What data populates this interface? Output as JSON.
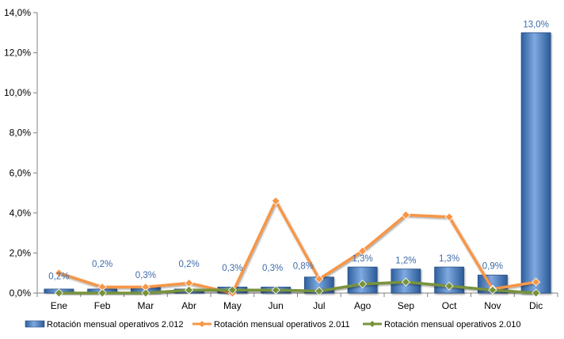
{
  "chart_data": {
    "type": "bar",
    "categories": [
      "Ene",
      "Feb",
      "Mar",
      "Abr",
      "May",
      "Jun",
      "Jul",
      "Ago",
      "Sep",
      "Oct",
      "Nov",
      "Dic"
    ],
    "ylim": [
      0,
      14
    ],
    "yticks": [
      0,
      2,
      4,
      6,
      8,
      10,
      12,
      14
    ],
    "ytick_labels": [
      "0,0%",
      "2,0%",
      "4,0%",
      "6,0%",
      "8,0%",
      "10,0%",
      "12,0%",
      "14,0%"
    ],
    "legend_position": "bottom",
    "grid": false,
    "series": [
      {
        "name": "Rotación mensual operativos 2.012",
        "type": "bar",
        "color": "#4F81BD",
        "values": [
          0.2,
          0.2,
          0.3,
          0.2,
          0.3,
          0.3,
          0.8,
          1.3,
          1.2,
          1.3,
          0.9,
          13.0
        ],
        "labels": [
          "0,2%",
          "0,2%",
          "0,3%",
          "0,2%",
          "0,3%",
          "0,3%",
          "0,8%",
          "1,3%",
          "1,2%",
          "1,3%",
          "0,9%",
          "13,0%"
        ]
      },
      {
        "name": "Rotación mensual operativos 2.011",
        "type": "line",
        "color": "#F79646",
        "values": [
          1.0,
          0.3,
          0.3,
          0.5,
          0.0,
          4.6,
          0.7,
          2.1,
          3.9,
          3.8,
          0.2,
          0.55
        ]
      },
      {
        "name": "Rotación mensual operativos 2.010",
        "type": "line",
        "color": "#77933C",
        "values": [
          0.0,
          0.0,
          0.0,
          0.15,
          0.15,
          0.15,
          0.1,
          0.45,
          0.55,
          0.35,
          0.15,
          0.0
        ]
      }
    ]
  }
}
